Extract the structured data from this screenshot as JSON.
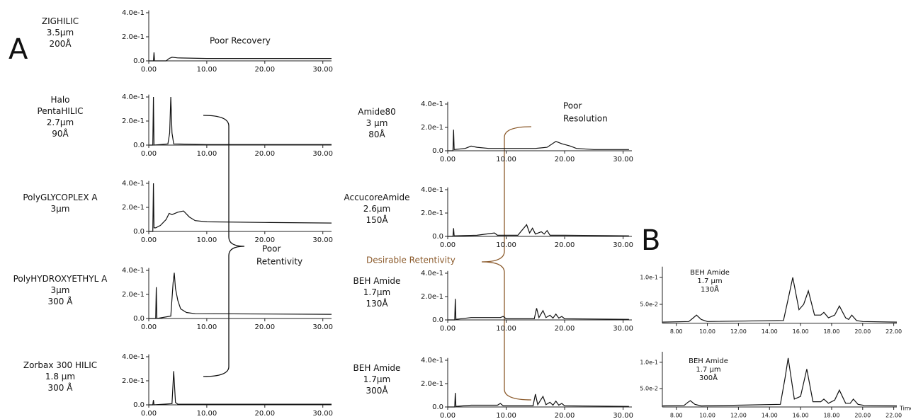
{
  "panel_labels": [
    "A",
    "B"
  ],
  "annotations": [
    {
      "lines": [
        "Poor Recovery"
      ]
    },
    {
      "lines": [
        "Poor",
        "Resolution"
      ]
    },
    {
      "lines": [
        "Poor",
        "Retentivity"
      ]
    },
    {
      "lines": [
        "Desirable Retentivity"
      ]
    }
  ],
  "chart_data": [
    {
      "type": "line",
      "label": [
        "ZIGHILIC",
        "3.5µm",
        "200Å"
      ],
      "color": "#111111",
      "x": [
        0,
        0.8,
        0.9,
        1.0,
        1.1,
        3,
        3.5,
        4,
        5,
        10,
        20,
        31.5
      ],
      "values": [
        0,
        0,
        0.07,
        0,
        0,
        0,
        0.02,
        0.03,
        0.025,
        0.02,
        0.02,
        0.02
      ],
      "xlim": [
        0,
        31.5
      ],
      "xticks": [
        {
          "value": 0,
          "label": "0.00"
        },
        {
          "value": 10,
          "label": "10.00"
        },
        {
          "value": 20,
          "label": "20.00"
        },
        {
          "value": 30,
          "label": "30.00"
        }
      ],
      "ylim": [
        0,
        0.42
      ],
      "yticks": [
        {
          "value": 0,
          "label": "0.0"
        },
        {
          "value": 0.2,
          "label": "2.0e-1"
        },
        {
          "value": 0.4,
          "label": "4.0e-1"
        }
      ]
    },
    {
      "type": "line",
      "label": [
        "Halo",
        "PentaHILIC",
        "2.7µm",
        "90Å"
      ],
      "color": "#111111",
      "x": [
        0,
        0.7,
        0.8,
        0.9,
        3.3,
        3.6,
        3.8,
        4.0,
        4.3,
        10,
        31.5
      ],
      "values": [
        0,
        0,
        0.4,
        0,
        0.01,
        0.1,
        0.4,
        0.1,
        0.01,
        0.005,
        0.005
      ],
      "xlim": [
        0,
        31.5
      ],
      "xticks": [
        {
          "value": 0,
          "label": "0.00"
        },
        {
          "value": 10,
          "label": "10.00"
        },
        {
          "value": 20,
          "label": "20.00"
        },
        {
          "value": 30,
          "label": "30.00"
        }
      ],
      "ylim": [
        0,
        0.42
      ],
      "yticks": [
        {
          "value": 0,
          "label": "0.0"
        },
        {
          "value": 0.2,
          "label": "2.0e-1"
        },
        {
          "value": 0.4,
          "label": "4.0e-1"
        }
      ]
    },
    {
      "type": "line",
      "label": [
        "PolyGLYCOPLEX A",
        "3µm"
      ],
      "color": "#111111",
      "x": [
        0,
        0.7,
        0.8,
        0.9,
        1.2,
        2,
        3,
        3.5,
        4,
        5,
        6,
        7,
        8,
        10,
        20,
        31.5
      ],
      "values": [
        0,
        0,
        0.4,
        0.03,
        0.03,
        0.05,
        0.1,
        0.15,
        0.14,
        0.16,
        0.17,
        0.12,
        0.09,
        0.08,
        0.075,
        0.07
      ],
      "xlim": [
        0,
        31.5
      ],
      "xticks": [
        {
          "value": 0,
          "label": "0.00"
        },
        {
          "value": 10,
          "label": "10.00"
        },
        {
          "value": 20,
          "label": "20.00"
        },
        {
          "value": 30,
          "label": "30.00"
        }
      ],
      "ylim": [
        0,
        0.42
      ],
      "yticks": [
        {
          "value": 0,
          "label": "0.0"
        },
        {
          "value": 0.2,
          "label": "2.0e-1"
        },
        {
          "value": 0.4,
          "label": "4.0e-1"
        }
      ]
    },
    {
      "type": "line",
      "label": [
        "PolyHYDROXYETHYL A",
        "3µm",
        "300 Å"
      ],
      "color": "#111111",
      "x": [
        0,
        1.2,
        1.3,
        1.4,
        3.8,
        4.2,
        4.4,
        4.6,
        5,
        5.5,
        6.5,
        8,
        31.5
      ],
      "values": [
        0,
        0,
        0.26,
        0,
        0.02,
        0.3,
        0.38,
        0.25,
        0.15,
        0.08,
        0.05,
        0.04,
        0.035
      ],
      "xlim": [
        0,
        31.5
      ],
      "xticks": [
        {
          "value": 0,
          "label": "0.00"
        },
        {
          "value": 10,
          "label": "10.00"
        },
        {
          "value": 20,
          "label": "20.00"
        },
        {
          "value": 30,
          "label": "30.00"
        }
      ],
      "ylim": [
        0,
        0.42
      ],
      "yticks": [
        {
          "value": 0,
          "label": "0.0"
        },
        {
          "value": 0.2,
          "label": "2.0e-1"
        },
        {
          "value": 0.4,
          "label": "4.0e-1"
        }
      ]
    },
    {
      "type": "line",
      "label": [
        "Zorbax 300 HILIC",
        "1.8 µm",
        "300 Å"
      ],
      "color": "#111111",
      "x": [
        0,
        0.7,
        0.8,
        0.9,
        4.0,
        4.3,
        4.6,
        5,
        31.5
      ],
      "values": [
        0,
        0,
        0.04,
        0,
        0.01,
        0.28,
        0.02,
        0.005,
        0.005
      ],
      "xlim": [
        0,
        31.5
      ],
      "xticks": [
        {
          "value": 0,
          "label": "0.00"
        },
        {
          "value": 10,
          "label": "10.00"
        },
        {
          "value": 20,
          "label": "20.00"
        },
        {
          "value": 30,
          "label": "30.00"
        }
      ],
      "ylim": [
        0,
        0.42
      ],
      "yticks": [
        {
          "value": 0,
          "label": "0.0"
        },
        {
          "value": 0.2,
          "label": "2.0e-1"
        },
        {
          "value": 0.4,
          "label": "4.0e-1"
        }
      ]
    },
    {
      "type": "line",
      "label": [
        "Amide80",
        "3 µm",
        "80Å"
      ],
      "color": "#111111",
      "x": [
        0,
        0.9,
        1.0,
        1.1,
        3,
        4,
        5,
        7,
        10,
        15,
        17,
        18.5,
        19.5,
        21,
        22,
        25,
        31
      ],
      "values": [
        0,
        0,
        0.18,
        0.01,
        0.02,
        0.04,
        0.03,
        0.02,
        0.02,
        0.02,
        0.03,
        0.08,
        0.06,
        0.04,
        0.02,
        0.01,
        0.01
      ],
      "xlim": [
        0,
        31.5
      ],
      "xticks": [
        {
          "value": 0,
          "label": "0.00"
        },
        {
          "value": 10,
          "label": "10.00"
        },
        {
          "value": 20,
          "label": "20.00"
        },
        {
          "value": 30,
          "label": "30.00"
        }
      ],
      "ylim": [
        0,
        0.42
      ],
      "yticks": [
        {
          "value": 0,
          "label": "0.0"
        },
        {
          "value": 0.2,
          "label": "2.0e-1"
        },
        {
          "value": 0.4,
          "label": "4.0e-1"
        }
      ]
    },
    {
      "type": "line",
      "label": [
        "AccucoreAmide",
        "2.6µm",
        "150Å"
      ],
      "color": "#111111",
      "x": [
        0,
        0.9,
        1.0,
        1.1,
        5,
        8,
        8.5,
        12,
        13.5,
        14,
        14.5,
        15,
        16,
        16.5,
        17,
        17.5,
        20,
        31
      ],
      "values": [
        0,
        0,
        0.07,
        0.005,
        0.01,
        0.03,
        0.01,
        0.01,
        0.1,
        0.03,
        0.07,
        0.02,
        0.04,
        0.02,
        0.05,
        0.01,
        0.01,
        0.005
      ],
      "xlim": [
        0,
        31.5
      ],
      "xticks": [
        {
          "value": 0,
          "label": "0.00"
        },
        {
          "value": 10,
          "label": "10.00"
        },
        {
          "value": 20,
          "label": "20.00"
        },
        {
          "value": 30,
          "label": "30.00"
        }
      ],
      "ylim": [
        0,
        0.42
      ],
      "yticks": [
        {
          "value": 0,
          "label": "0.0"
        },
        {
          "value": 0.2,
          "label": "2.0e-1"
        },
        {
          "value": 0.4,
          "label": "4.0e-1"
        }
      ]
    },
    {
      "type": "line",
      "label": [
        "BEH Amide",
        "1.7µm",
        "130Å"
      ],
      "color": "#111111",
      "x": [
        0,
        1.2,
        1.3,
        1.4,
        4,
        9,
        9.5,
        10,
        14.8,
        15.2,
        15.6,
        16.3,
        16.8,
        17.5,
        18,
        18.5,
        19,
        19.5,
        20,
        31
      ],
      "values": [
        0,
        0,
        0.18,
        0.005,
        0.02,
        0.02,
        0.03,
        0.01,
        0.01,
        0.1,
        0.02,
        0.08,
        0.02,
        0.04,
        0.015,
        0.05,
        0.015,
        0.03,
        0.01,
        0.005
      ],
      "xlim": [
        0,
        31.5
      ],
      "xticks": [
        {
          "value": 0,
          "label": "0.00"
        },
        {
          "value": 10,
          "label": "10.00"
        },
        {
          "value": 20,
          "label": "20.00"
        },
        {
          "value": 30,
          "label": "30.00"
        }
      ],
      "ylim": [
        0,
        0.42
      ],
      "yticks": [
        {
          "value": 0,
          "label": "0.0"
        },
        {
          "value": 0.2,
          "label": "2.0e-1"
        },
        {
          "value": 0.4,
          "label": "4.0e-1"
        }
      ]
    },
    {
      "type": "line",
      "label": [
        "BEH Amide",
        "1.7µm",
        "300Å"
      ],
      "color": "#111111",
      "x": [
        0,
        1.2,
        1.3,
        1.4,
        4,
        8.5,
        9,
        9.5,
        14.6,
        15,
        15.4,
        16.3,
        16.8,
        17.5,
        18,
        18.5,
        19,
        19.5,
        20,
        31
      ],
      "values": [
        0,
        0,
        0.12,
        0.005,
        0.015,
        0.015,
        0.03,
        0.01,
        0.01,
        0.11,
        0.02,
        0.09,
        0.02,
        0.04,
        0.015,
        0.05,
        0.015,
        0.03,
        0.01,
        0.005
      ],
      "xlim": [
        0,
        31.5
      ],
      "xticks": [
        {
          "value": 0,
          "label": "0.00"
        },
        {
          "value": 10,
          "label": "10.00"
        },
        {
          "value": 20,
          "label": "20.00"
        },
        {
          "value": 30,
          "label": "30.00"
        }
      ],
      "ylim": [
        0,
        0.42
      ],
      "yticks": [
        {
          "value": 0,
          "label": "0.0"
        },
        {
          "value": 0.2,
          "label": "2.0e-1"
        },
        {
          "value": 0.4,
          "label": "4.0e-1"
        }
      ]
    },
    {
      "type": "line",
      "label": [
        "BEH Amide",
        "1.7 µm",
        "130Å"
      ],
      "color": "#111111",
      "x": [
        7.1,
        8.8,
        9.1,
        9.3,
        9.6,
        10,
        14.9,
        15.2,
        15.5,
        15.9,
        16.2,
        16.5,
        16.9,
        17.3,
        17.5,
        17.8,
        18.2,
        18.5,
        18.9,
        19.1,
        19.3,
        19.6,
        20,
        22.2
      ],
      "values": [
        0.017,
        0.018,
        0.025,
        0.03,
        0.022,
        0.018,
        0.02,
        0.06,
        0.1,
        0.04,
        0.05,
        0.075,
        0.03,
        0.03,
        0.035,
        0.025,
        0.03,
        0.047,
        0.025,
        0.022,
        0.03,
        0.02,
        0.018,
        0.017
      ],
      "xlim": [
        7.1,
        22.2
      ],
      "xticks": [
        {
          "value": 8,
          "label": "8.00"
        },
        {
          "value": 10,
          "label": "10.00"
        },
        {
          "value": 12,
          "label": "12.00"
        },
        {
          "value": 14,
          "label": "14.00"
        },
        {
          "value": 16,
          "label": "16.00"
        },
        {
          "value": 18,
          "label": "18.00"
        },
        {
          "value": 20,
          "label": "20.00"
        },
        {
          "value": 22,
          "label": "22.00"
        }
      ],
      "ylim": [
        0.015,
        0.12
      ],
      "yticks": [
        {
          "value": 0.05,
          "label": "5.0e-2"
        },
        {
          "value": 0.1,
          "label": "1.0e-1"
        }
      ]
    },
    {
      "type": "line",
      "label": [
        "BEH Amide",
        "1.7 µm",
        "300Å"
      ],
      "color": "#111111",
      "xlabel": "Time",
      "x": [
        7.1,
        8.5,
        8.75,
        8.9,
        9.2,
        9.6,
        14.7,
        15.0,
        15.2,
        15.6,
        16.0,
        16.4,
        16.8,
        17.3,
        17.5,
        17.8,
        18.2,
        18.5,
        18.9,
        19.2,
        19.4,
        19.7,
        20.1,
        22.2
      ],
      "values": [
        0.017,
        0.018,
        0.024,
        0.027,
        0.02,
        0.017,
        0.02,
        0.07,
        0.108,
        0.03,
        0.035,
        0.087,
        0.025,
        0.025,
        0.03,
        0.022,
        0.028,
        0.047,
        0.022,
        0.022,
        0.03,
        0.02,
        0.018,
        0.017
      ],
      "xlim": [
        7.1,
        22.2
      ],
      "xticks": [
        {
          "value": 8,
          "label": "8.00"
        },
        {
          "value": 10,
          "label": "10.00"
        },
        {
          "value": 12,
          "label": "12.00"
        },
        {
          "value": 14,
          "label": "14.00"
        },
        {
          "value": 16,
          "label": "16.00"
        },
        {
          "value": 18,
          "label": "18.00"
        },
        {
          "value": 20,
          "label": "20.00"
        },
        {
          "value": 22,
          "label": "22.00"
        }
      ],
      "ylim": [
        0.015,
        0.12
      ],
      "yticks": [
        {
          "value": 0.05,
          "label": "5.0e-2"
        },
        {
          "value": 0.1,
          "label": "1.0e-1"
        }
      ]
    }
  ]
}
